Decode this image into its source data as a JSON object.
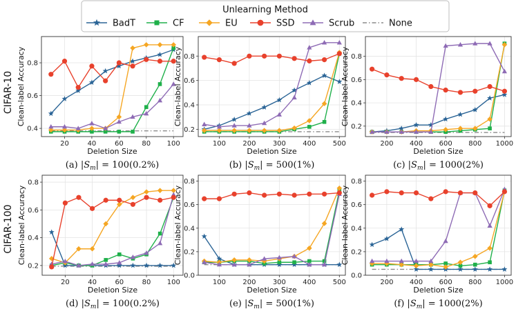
{
  "legend": {
    "title": "Unlearning Method",
    "entries": [
      {
        "name": "BadT",
        "color": "#2a6496",
        "marker": "star",
        "dash": ""
      },
      {
        "name": "CF",
        "color": "#1fb04a",
        "marker": "square",
        "dash": ""
      },
      {
        "name": "EU",
        "color": "#f5a623",
        "marker": "diamond",
        "dash": ""
      },
      {
        "name": "SSD",
        "color": "#e8412c",
        "marker": "circle",
        "dash": ""
      },
      {
        "name": "Scrub",
        "color": "#8e6bb5",
        "marker": "triangle",
        "dash": ""
      },
      {
        "name": "None",
        "color": "#8a8a8a",
        "marker": "none",
        "dash": "6,3,1.5,3"
      }
    ]
  },
  "row_labels": [
    "CIFAR-10",
    "CIFAR-100"
  ],
  "chart_data": [
    {
      "type": "line",
      "caption_prefix": "(a)",
      "caption_s": "100",
      "caption_pct": "(0.2%)",
      "xlabel": "Deletion Size",
      "ylabel": "Clean-label Accuracy",
      "xlim": [
        3,
        107
      ],
      "ylim": [
        0.35,
        0.96
      ],
      "xticks": [
        20,
        40,
        60,
        80,
        100
      ],
      "yticks": [
        0.4,
        0.6,
        0.8
      ],
      "x": [
        10,
        20,
        30,
        40,
        50,
        60,
        70,
        80,
        90,
        100
      ],
      "series": [
        {
          "name": "BadT",
          "values": [
            0.49,
            0.58,
            0.63,
            0.68,
            0.75,
            0.78,
            0.81,
            0.83,
            0.85,
            0.88
          ]
        },
        {
          "name": "CF",
          "values": [
            0.38,
            0.38,
            0.38,
            0.38,
            0.38,
            0.38,
            0.38,
            0.53,
            0.67,
            0.89
          ]
        },
        {
          "name": "EU",
          "values": [
            0.39,
            0.39,
            0.39,
            0.4,
            0.4,
            0.47,
            0.89,
            0.91,
            0.91,
            0.91
          ]
        },
        {
          "name": "SSD",
          "values": [
            0.73,
            0.81,
            0.65,
            0.78,
            0.69,
            0.8,
            0.78,
            0.82,
            0.81,
            0.81
          ]
        },
        {
          "name": "Scrub",
          "values": [
            0.41,
            0.41,
            0.4,
            0.43,
            0.4,
            0.44,
            0.47,
            0.49,
            0.57,
            0.67
          ]
        },
        {
          "name": "None",
          "values": [
            0.385,
            0.385,
            0.385,
            0.385,
            0.385,
            0.385,
            0.385,
            0.385,
            0.385,
            0.385
          ]
        }
      ]
    },
    {
      "type": "line",
      "caption_prefix": "(b)",
      "caption_s": "500",
      "caption_pct": "(1%)",
      "xlabel": "Deletion Size",
      "ylabel": "Clean-label Accuracy",
      "xlim": [
        30,
        520
      ],
      "ylim": [
        0.14,
        0.96
      ],
      "xticks": [
        100,
        200,
        300,
        400,
        500
      ],
      "yticks": [
        0.2,
        0.4,
        0.6,
        0.8
      ],
      "x": [
        50,
        100,
        150,
        200,
        250,
        300,
        350,
        400,
        450,
        500
      ],
      "series": [
        {
          "name": "BadT",
          "values": [
            0.2,
            0.23,
            0.28,
            0.33,
            0.38,
            0.44,
            0.52,
            0.58,
            0.64,
            0.59
          ]
        },
        {
          "name": "CF",
          "values": [
            0.18,
            0.18,
            0.18,
            0.18,
            0.18,
            0.18,
            0.2,
            0.22,
            0.26,
            0.82
          ]
        },
        {
          "name": "EU",
          "values": [
            0.19,
            0.19,
            0.19,
            0.19,
            0.19,
            0.19,
            0.21,
            0.27,
            0.41,
            0.83
          ]
        },
        {
          "name": "SSD",
          "values": [
            0.79,
            0.77,
            0.74,
            0.8,
            0.8,
            0.8,
            0.78,
            0.76,
            0.77,
            0.82
          ]
        },
        {
          "name": "Scrub",
          "values": [
            0.24,
            0.22,
            0.23,
            0.23,
            0.25,
            0.32,
            0.46,
            0.87,
            0.91,
            0.91
          ]
        },
        {
          "name": "None",
          "values": [
            0.18,
            0.18,
            0.18,
            0.18,
            0.18,
            0.18,
            0.18,
            0.18,
            0.18,
            0.18
          ]
        }
      ]
    },
    {
      "type": "line",
      "caption_prefix": "(c)",
      "caption_s": "1000",
      "caption_pct": "(2%)",
      "xlabel": "Deletion Size",
      "ylabel": "Clean-label Accuracy",
      "xlim": [
        55,
        1045
      ],
      "ylim": [
        0.11,
        0.97
      ],
      "xticks": [
        200,
        400,
        600,
        800,
        1000
      ],
      "yticks": [
        0.2,
        0.4,
        0.6,
        0.8
      ],
      "x": [
        100,
        200,
        300,
        400,
        500,
        600,
        700,
        800,
        900,
        1000
      ],
      "series": [
        {
          "name": "BadT",
          "values": [
            0.15,
            0.16,
            0.18,
            0.21,
            0.21,
            0.26,
            0.3,
            0.34,
            0.44,
            0.47
          ]
        },
        {
          "name": "CF",
          "values": [
            0.15,
            0.15,
            0.15,
            0.15,
            0.15,
            0.15,
            0.16,
            0.17,
            0.18,
            0.91
          ]
        },
        {
          "name": "EU",
          "values": [
            0.15,
            0.15,
            0.15,
            0.16,
            0.16,
            0.17,
            0.18,
            0.18,
            0.26,
            0.9
          ]
        },
        {
          "name": "SSD",
          "values": [
            0.69,
            0.64,
            0.61,
            0.6,
            0.54,
            0.51,
            0.49,
            0.5,
            0.54,
            0.5
          ]
        },
        {
          "name": "Scrub",
          "values": [
            0.15,
            0.15,
            0.15,
            0.15,
            0.15,
            0.89,
            0.9,
            0.91,
            0.91,
            0.67
          ]
        },
        {
          "name": "None",
          "values": [
            0.145,
            0.145,
            0.145,
            0.145,
            0.145,
            0.145,
            0.145,
            0.145,
            0.145,
            0.145
          ]
        }
      ]
    },
    {
      "type": "line",
      "caption_prefix": "(d)",
      "caption_s": "100",
      "caption_pct": "(0.2%)",
      "xlabel": "Deletion Size",
      "ylabel": "Clean-label Accuracy",
      "xlim": [
        3,
        107
      ],
      "ylim": [
        0.13,
        0.85
      ],
      "xticks": [
        20,
        40,
        60,
        80,
        100
      ],
      "yticks": [
        0.2,
        0.4,
        0.6,
        0.8
      ],
      "x": [
        10,
        20,
        30,
        40,
        50,
        60,
        70,
        80,
        90,
        100
      ],
      "series": [
        {
          "name": "BadT",
          "values": [
            0.44,
            0.2,
            0.2,
            0.2,
            0.2,
            0.2,
            0.2,
            0.2,
            0.2,
            0.2
          ]
        },
        {
          "name": "CF",
          "values": [
            0.2,
            0.22,
            0.2,
            0.2,
            0.24,
            0.28,
            0.25,
            0.28,
            0.43,
            0.69
          ]
        },
        {
          "name": "EU",
          "values": [
            0.25,
            0.22,
            0.32,
            0.32,
            0.5,
            0.64,
            0.69,
            0.73,
            0.74,
            0.74
          ]
        },
        {
          "name": "SSD",
          "values": [
            0.19,
            0.65,
            0.69,
            0.61,
            0.67,
            0.67,
            0.64,
            0.69,
            0.67,
            0.69
          ]
        },
        {
          "name": "Scrub",
          "values": [
            0.21,
            0.23,
            0.2,
            0.21,
            0.21,
            0.22,
            0.26,
            0.29,
            0.36,
            0.71
          ]
        },
        {
          "name": "None",
          "values": [
            0.195,
            0.195,
            0.195,
            0.195,
            0.195,
            0.195,
            0.195,
            0.195,
            0.195,
            0.195
          ]
        }
      ]
    },
    {
      "type": "line",
      "caption_prefix": "(e)",
      "caption_s": "500",
      "caption_pct": "(1%)",
      "xlabel": "Deletion Size",
      "ylabel": "Clean-label Accuracy",
      "xlim": [
        30,
        520
      ],
      "ylim": [
        0.0,
        0.85
      ],
      "xticks": [
        100,
        200,
        300,
        400,
        500
      ],
      "yticks": [
        0.0,
        0.2,
        0.4,
        0.6,
        0.8
      ],
      "x": [
        50,
        100,
        150,
        200,
        250,
        300,
        350,
        400,
        450,
        500
      ],
      "series": [
        {
          "name": "BadT",
          "values": [
            0.33,
            0.14,
            0.09,
            0.09,
            0.09,
            0.09,
            0.09,
            0.09,
            0.09,
            0.09
          ]
        },
        {
          "name": "CF",
          "values": [
            0.11,
            0.11,
            0.12,
            0.12,
            0.1,
            0.11,
            0.11,
            0.12,
            0.12,
            0.72
          ]
        },
        {
          "name": "EU",
          "values": [
            0.12,
            0.11,
            0.13,
            0.13,
            0.12,
            0.14,
            0.16,
            0.23,
            0.44,
            0.74
          ]
        },
        {
          "name": "SSD",
          "values": [
            0.65,
            0.65,
            0.69,
            0.7,
            0.68,
            0.69,
            0.68,
            0.69,
            0.69,
            0.7
          ]
        },
        {
          "name": "Scrub",
          "values": [
            0.11,
            0.09,
            0.09,
            0.09,
            0.14,
            0.15,
            0.16,
            0.09,
            0.09,
            0.69
          ]
        },
        {
          "name": "None",
          "values": [
            0.09,
            0.09,
            0.09,
            0.09,
            0.09,
            0.09,
            0.09,
            0.09,
            0.09,
            0.09
          ]
        }
      ]
    },
    {
      "type": "line",
      "caption_prefix": "(f)",
      "caption_s": "1000",
      "caption_pct": "(2%)",
      "xlabel": "Deletion Size",
      "ylabel": "Clean-label Accuracy",
      "xlim": [
        55,
        1045
      ],
      "ylim": [
        0.0,
        0.85
      ],
      "xticks": [
        200,
        400,
        600,
        800,
        1000
      ],
      "yticks": [
        0.0,
        0.2,
        0.4,
        0.6,
        0.8
      ],
      "x": [
        100,
        200,
        300,
        400,
        500,
        600,
        700,
        800,
        900,
        1000
      ],
      "series": [
        {
          "name": "BadT",
          "values": [
            0.26,
            0.31,
            0.39,
            0.05,
            0.05,
            0.05,
            0.05,
            0.05,
            0.05,
            0.05
          ]
        },
        {
          "name": "CF",
          "values": [
            0.09,
            0.09,
            0.09,
            0.09,
            0.09,
            0.1,
            0.08,
            0.09,
            0.11,
            0.72
          ]
        },
        {
          "name": "EU",
          "values": [
            0.1,
            0.1,
            0.09,
            0.08,
            0.09,
            0.07,
            0.11,
            0.16,
            0.23,
            0.71
          ]
        },
        {
          "name": "SSD",
          "values": [
            0.68,
            0.71,
            0.7,
            0.7,
            0.65,
            0.71,
            0.7,
            0.7,
            0.59,
            0.71
          ]
        },
        {
          "name": "Scrub",
          "values": [
            0.12,
            0.12,
            0.12,
            0.12,
            0.12,
            0.29,
            0.7,
            0.7,
            0.42,
            0.73
          ]
        },
        {
          "name": "None",
          "values": [
            0.05,
            0.05,
            0.05,
            0.05,
            0.05,
            0.05,
            0.05,
            0.05,
            0.05,
            0.05
          ]
        }
      ]
    }
  ]
}
